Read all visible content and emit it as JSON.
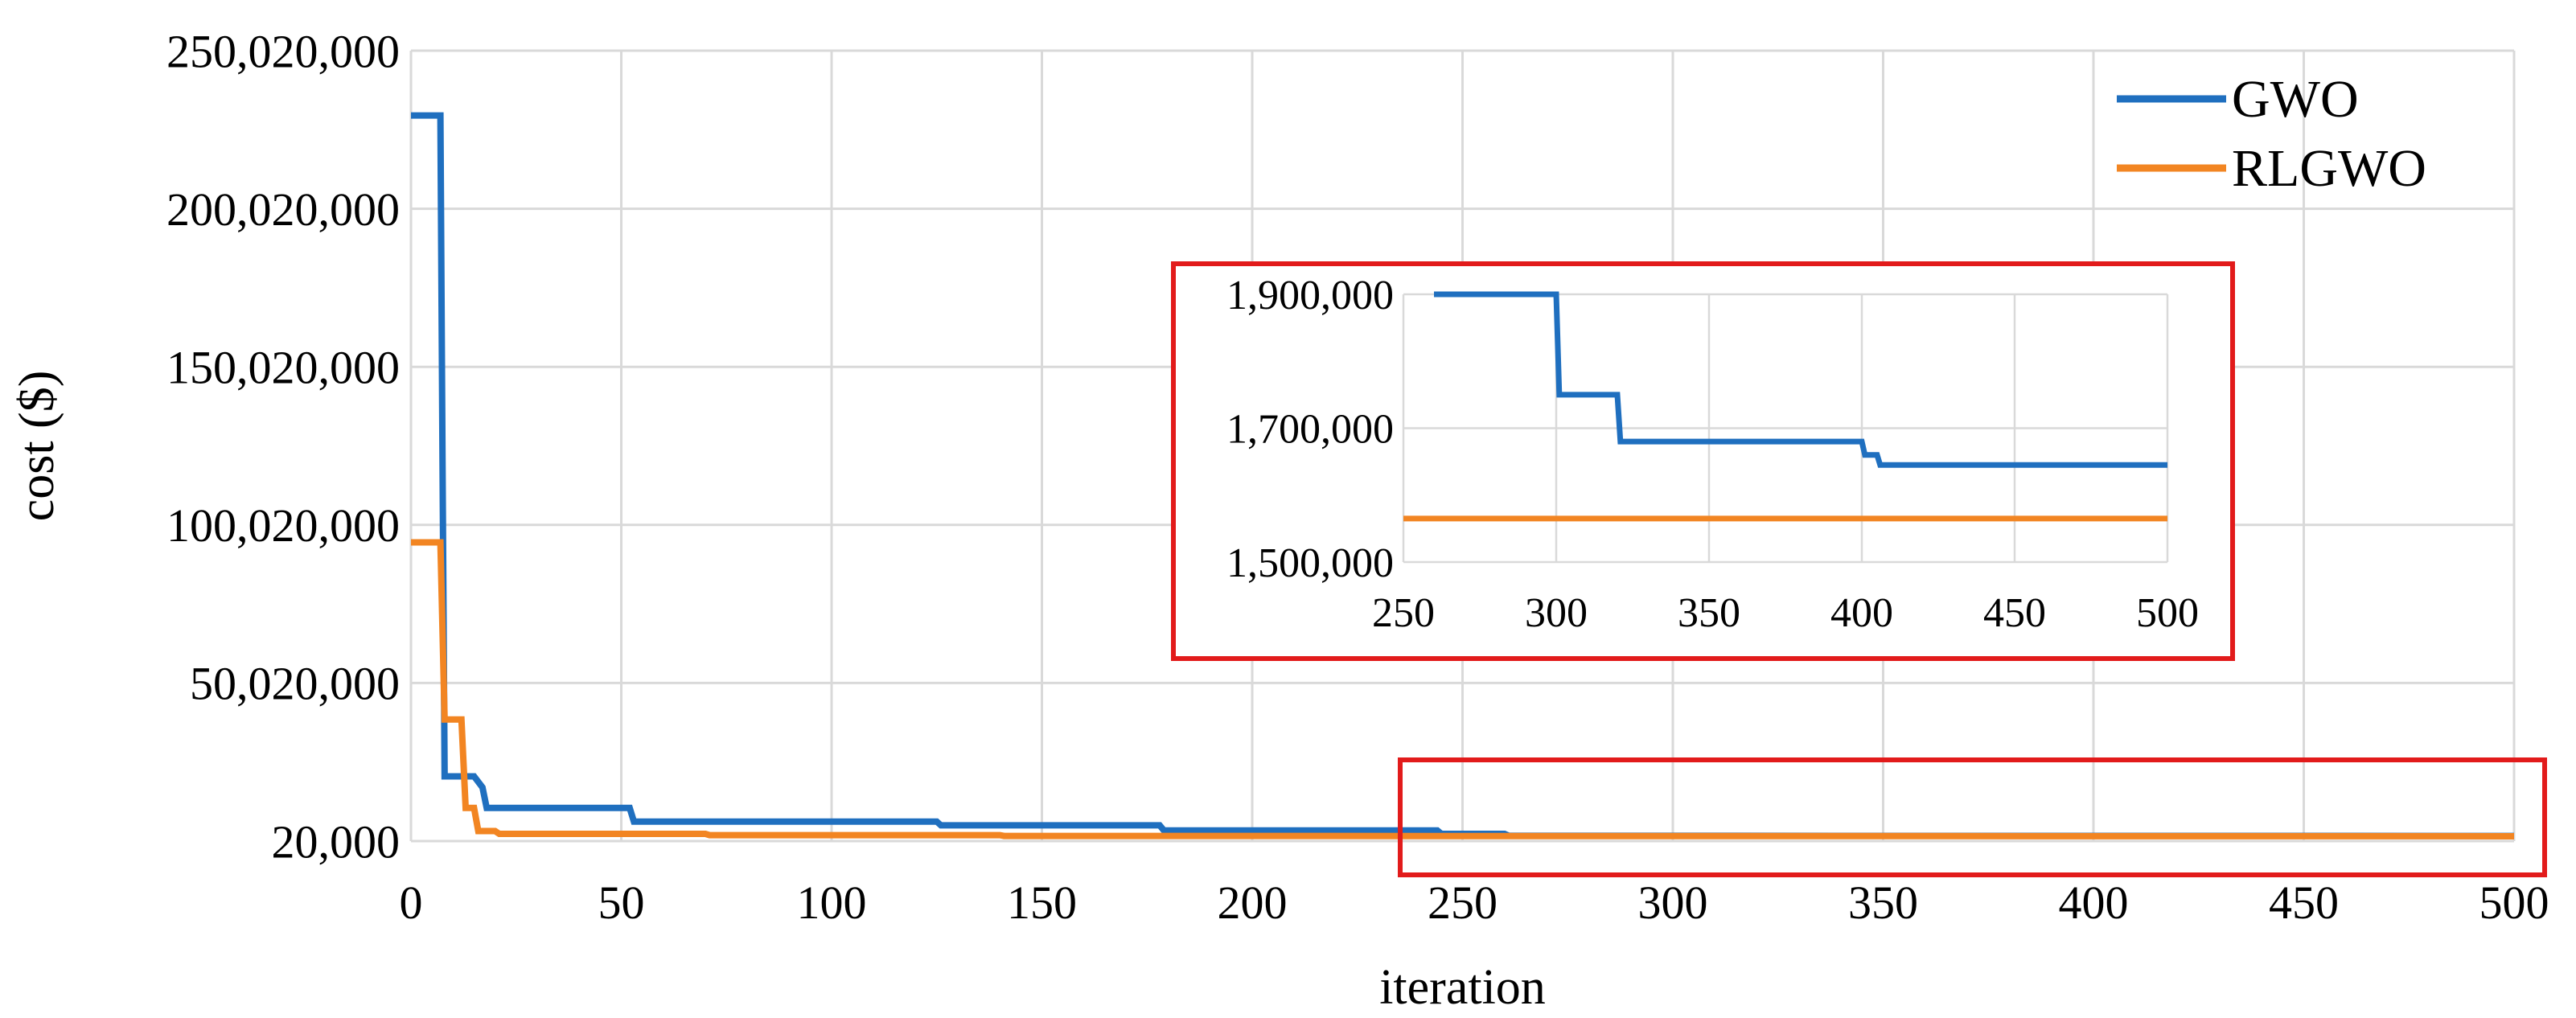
{
  "chart_data": [
    {
      "id": "main",
      "type": "line",
      "title": "",
      "xlabel": "iteration",
      "ylabel": "cost ($)",
      "xlim": [
        0,
        500
      ],
      "ylim": [
        20000,
        250020000
      ],
      "xticks": [
        0,
        50,
        100,
        150,
        200,
        250,
        300,
        350,
        400,
        450,
        500
      ],
      "yticks": [
        20000,
        50020000,
        100020000,
        150020000,
        200020000,
        250020000
      ],
      "xtick_labels": [
        "0",
        "50",
        "100",
        "150",
        "200",
        "250",
        "300",
        "350",
        "400",
        "450",
        "500"
      ],
      "ytick_labels": [
        "20,000",
        "50,020,000",
        "100,020,000",
        "150,020,000",
        "200,020,000",
        "250,020,000"
      ],
      "grid": true,
      "legend_position": "top-right",
      "series": [
        {
          "name": "GWO",
          "color": "#1F6FBF",
          "x": [
            0,
            7,
            7.5,
            8,
            15,
            17,
            18,
            52,
            53,
            125,
            126,
            178,
            179,
            244,
            245,
            260,
            261,
            500
          ],
          "y": [
            229500000,
            229500000,
            120000000,
            20500000,
            20500000,
            17000000,
            10500000,
            10500000,
            6200000,
            6200000,
            5000000,
            5000000,
            3400000,
            3400000,
            2300000,
            2300000,
            1700000,
            1650000
          ]
        },
        {
          "name": "RLGWO",
          "color": "#F28522",
          "x": [
            0,
            7,
            8,
            12,
            13,
            15,
            16,
            20,
            21,
            70,
            71,
            140,
            141,
            500
          ],
          "y": [
            94500000,
            94500000,
            38500000,
            38500000,
            10500000,
            10500000,
            3200000,
            3200000,
            2300000,
            2300000,
            1900000,
            1900000,
            1650000,
            1560000
          ]
        }
      ]
    },
    {
      "id": "inset",
      "type": "line",
      "title": "",
      "xlabel": "",
      "ylabel": "",
      "xlim": [
        250,
        500
      ],
      "ylim": [
        1500000,
        1900000
      ],
      "xticks": [
        250,
        300,
        350,
        400,
        450,
        500
      ],
      "yticks": [
        1500000,
        1700000,
        1900000
      ],
      "xtick_labels": [
        "250",
        "300",
        "350",
        "400",
        "450",
        "500"
      ],
      "ytick_labels": [
        "1,500,000",
        "1,700,000",
        "1,900,000"
      ],
      "grid": true,
      "series": [
        {
          "name": "GWO",
          "color": "#1F6FBF",
          "x": [
            260,
            300,
            301,
            320,
            321,
            400,
            401,
            405,
            406,
            500
          ],
          "y": [
            1900000,
            1900000,
            1750000,
            1750000,
            1680000,
            1680000,
            1660000,
            1660000,
            1645000,
            1645000
          ]
        },
        {
          "name": "RLGWO",
          "color": "#F28522",
          "x": [
            250,
            500
          ],
          "y": [
            1565000,
            1565000
          ]
        }
      ]
    }
  ],
  "highlight_color": "#E21B1B"
}
